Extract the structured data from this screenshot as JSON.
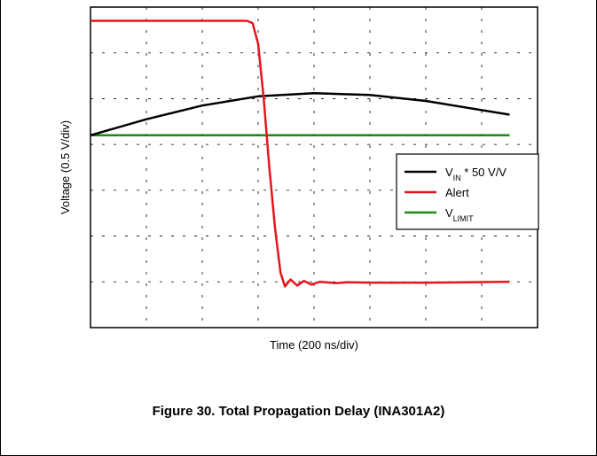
{
  "chart_data": {
    "type": "line",
    "title": "",
    "xlabel": "Time (200 ns/div)",
    "ylabel": "Voltage (0.5 V/div)",
    "x_divisions": 8,
    "y_divisions": 7,
    "xlim": [
      0,
      8
    ],
    "ylim": [
      0,
      7
    ],
    "grid": true,
    "legend_position": "right-middle",
    "series": [
      {
        "name": "VIN * 50 V/V",
        "name_main": "V",
        "name_sub": "IN",
        "name_rest": " * 50 V/V",
        "color": "#000000",
        "points": [
          [
            0,
            4.2
          ],
          [
            1,
            4.55
          ],
          [
            2,
            4.85
          ],
          [
            3,
            5.05
          ],
          [
            4,
            5.12
          ],
          [
            5,
            5.08
          ],
          [
            6,
            4.95
          ],
          [
            7.5,
            4.65
          ]
        ]
      },
      {
        "name": "Alert",
        "name_main": "Alert",
        "name_sub": "",
        "name_rest": "",
        "color": "#e8141b",
        "points": [
          [
            0,
            6.7
          ],
          [
            2.8,
            6.7
          ],
          [
            2.9,
            6.65
          ],
          [
            3.0,
            6.2
          ],
          [
            3.1,
            5.0
          ],
          [
            3.2,
            3.5
          ],
          [
            3.3,
            2.2
          ],
          [
            3.4,
            1.2
          ],
          [
            3.48,
            0.9
          ],
          [
            3.58,
            1.05
          ],
          [
            3.7,
            0.92
          ],
          [
            3.82,
            1.02
          ],
          [
            3.95,
            0.94
          ],
          [
            4.1,
            1.0
          ],
          [
            4.4,
            0.97
          ],
          [
            4.6,
            0.99
          ],
          [
            5.0,
            0.98
          ],
          [
            6.0,
            0.98
          ],
          [
            7.5,
            1.0
          ]
        ]
      },
      {
        "name": "VLIMIT",
        "name_main": "V",
        "name_sub": "LIMIT",
        "name_rest": "",
        "color": "#1a8a1a",
        "points": [
          [
            0,
            4.2
          ],
          [
            7.5,
            4.2
          ]
        ]
      }
    ]
  },
  "caption": "Figure 30. Total Propagation Delay (INA301A2)"
}
